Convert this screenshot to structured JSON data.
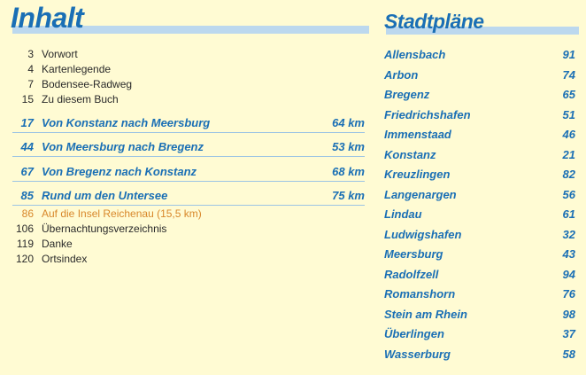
{
  "inhalt": {
    "title": "Inhalt",
    "front": [
      {
        "page": "3",
        "label": "Vorwort"
      },
      {
        "page": "4",
        "label": "Kartenlegende"
      },
      {
        "page": "7",
        "label": "Bodensee-Radweg"
      },
      {
        "page": "15",
        "label": "Zu diesem Buch"
      }
    ],
    "routes": [
      {
        "page": "17",
        "label": "Von Konstanz nach Meersburg",
        "km": "64 km"
      },
      {
        "page": "44",
        "label": "Von Meersburg nach Bregenz",
        "km": "53 km"
      },
      {
        "page": "67",
        "label": "Von Bregenz nach Konstanz",
        "km": "68 km"
      },
      {
        "page": "85",
        "label": "Rund um den Untersee",
        "km": "75 km"
      }
    ],
    "sub": {
      "page": "86",
      "label": "Auf die Insel Reichenau (15,5 km)"
    },
    "back": [
      {
        "page": "106",
        "label": "Übernachtungsverzeichnis"
      },
      {
        "page": "119",
        "label": "Danke"
      },
      {
        "page": "120",
        "label": "Ortsindex"
      }
    ]
  },
  "stadtplaene": {
    "title": "Stadtpläne",
    "cities": [
      {
        "name": "Allensbach",
        "page": "91"
      },
      {
        "name": "Arbon",
        "page": "74"
      },
      {
        "name": "Bregenz",
        "page": "65"
      },
      {
        "name": "Friedrichshafen",
        "page": "51"
      },
      {
        "name": "Immenstaad",
        "page": "46"
      },
      {
        "name": "Konstanz",
        "page": "21"
      },
      {
        "name": "Kreuzlingen",
        "page": "82"
      },
      {
        "name": "Langenargen",
        "page": "56"
      },
      {
        "name": "Lindau",
        "page": "61"
      },
      {
        "name": "Ludwigshafen",
        "page": "32"
      },
      {
        "name": "Meersburg",
        "page": "43"
      },
      {
        "name": "Radolfzell",
        "page": "94"
      },
      {
        "name": "Romanshorn",
        "page": "76"
      },
      {
        "name": "Stein am Rhein",
        "page": "98"
      },
      {
        "name": "Überlingen",
        "page": "37"
      },
      {
        "name": "Wasserburg",
        "page": "58"
      }
    ]
  },
  "colors": {
    "blue": "#1a6fb5",
    "orange": "#d8872a",
    "bar": "#bcd8ee",
    "background": "#fffbd3"
  }
}
